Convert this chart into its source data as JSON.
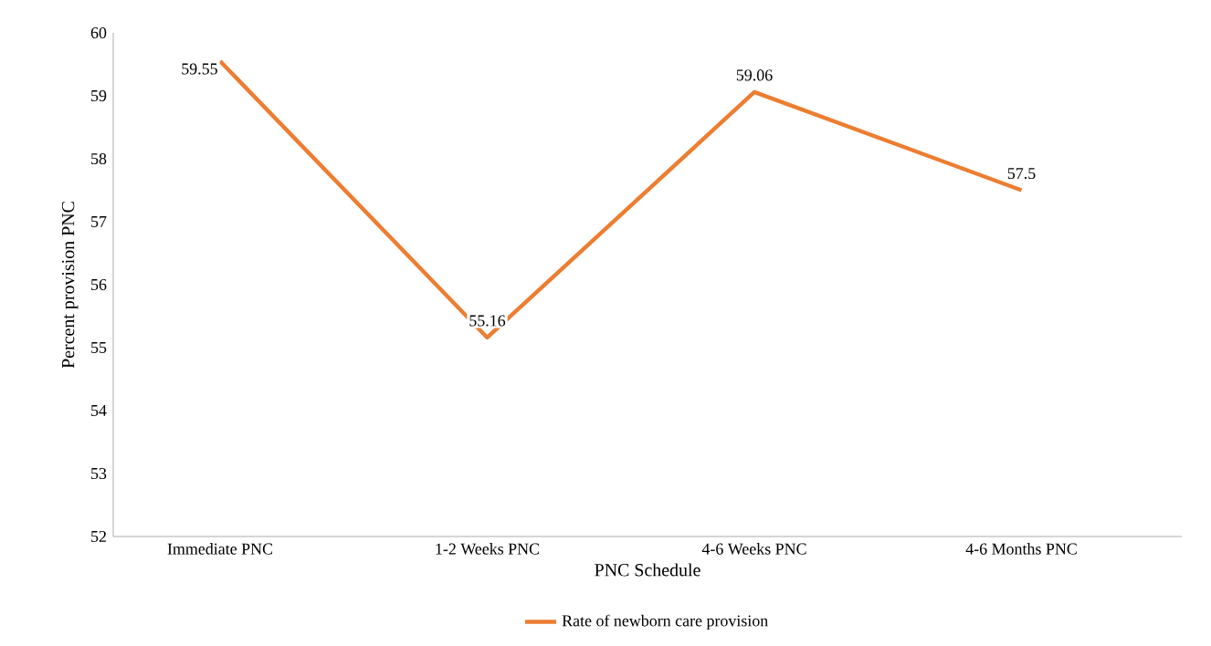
{
  "chart_data": {
    "type": "line",
    "xlabel": "PNC Schedule",
    "ylabel": "Percent provision PNC",
    "categories": [
      "Immediate PNC",
      "1-2 Weeks PNC",
      "4-6 Weeks PNC",
      "4-6 Months PNC"
    ],
    "series": [
      {
        "name": "Rate of newborn care provision",
        "color": "#ed7d31",
        "values": [
          59.55,
          55.16,
          59.06,
          57.5
        ]
      }
    ],
    "ylim": [
      52,
      60
    ],
    "yticks": [
      52,
      53,
      54,
      55,
      56,
      57,
      58,
      59,
      60
    ],
    "data_labels": true,
    "legend": "bottom",
    "marker": "none",
    "line_style": "solid"
  }
}
